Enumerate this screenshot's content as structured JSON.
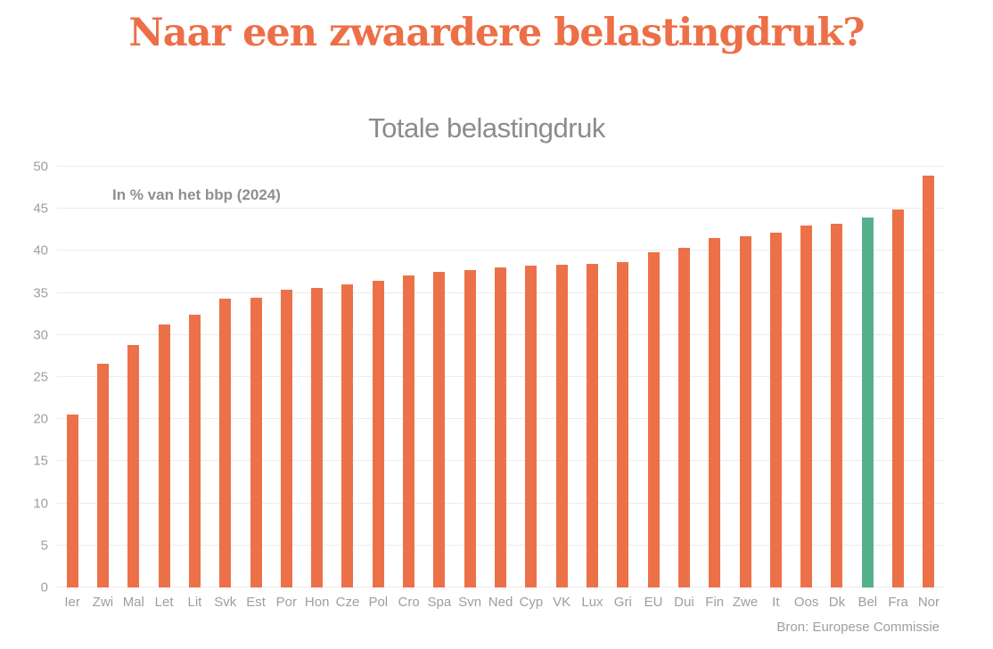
{
  "title": {
    "text": "Naar een zwaardere belastingdruk?",
    "color": "#ed6f47"
  },
  "chart_data": {
    "type": "bar",
    "title": "Totale belastingdruk",
    "annotation": "In % van het bbp (2024)",
    "source": "Bron: Europese Commissie",
    "xlabel": "",
    "ylabel": "",
    "ylim": [
      0,
      50
    ],
    "ytick_step": 5,
    "grid": true,
    "legend": false,
    "categories": [
      "Ier",
      "Zwi",
      "Mal",
      "Let",
      "Lit",
      "Svk",
      "Est",
      "Por",
      "Hon",
      "Cze",
      "Pol",
      "Cro",
      "Spa",
      "Svn",
      "Ned",
      "Cyp",
      "VK",
      "Lux",
      "Gri",
      "EU",
      "Dui",
      "Fin",
      "Zwe",
      "It",
      "Oos",
      "Dk",
      "Bel",
      "Fra",
      "Nor"
    ],
    "values": [
      20.6,
      26.6,
      28.8,
      31.2,
      32.4,
      34.3,
      34.4,
      35.4,
      35.6,
      36.0,
      36.4,
      37.1,
      37.5,
      37.7,
      38.0,
      38.2,
      38.4,
      38.5,
      38.7,
      39.8,
      40.4,
      41.5,
      41.7,
      42.2,
      43.0,
      43.2,
      44.0,
      44.9,
      48.9
    ],
    "bar_color": "#ed7148",
    "highlight": {
      "category": "Bel",
      "color": "#55b18c"
    },
    "colors": {
      "background": "#ffffff",
      "grid": "#ececec",
      "axis_text": "#9e9e9e",
      "subtitle_text": "#8c8c8c",
      "annotation_text": "#8f8f8f"
    }
  }
}
